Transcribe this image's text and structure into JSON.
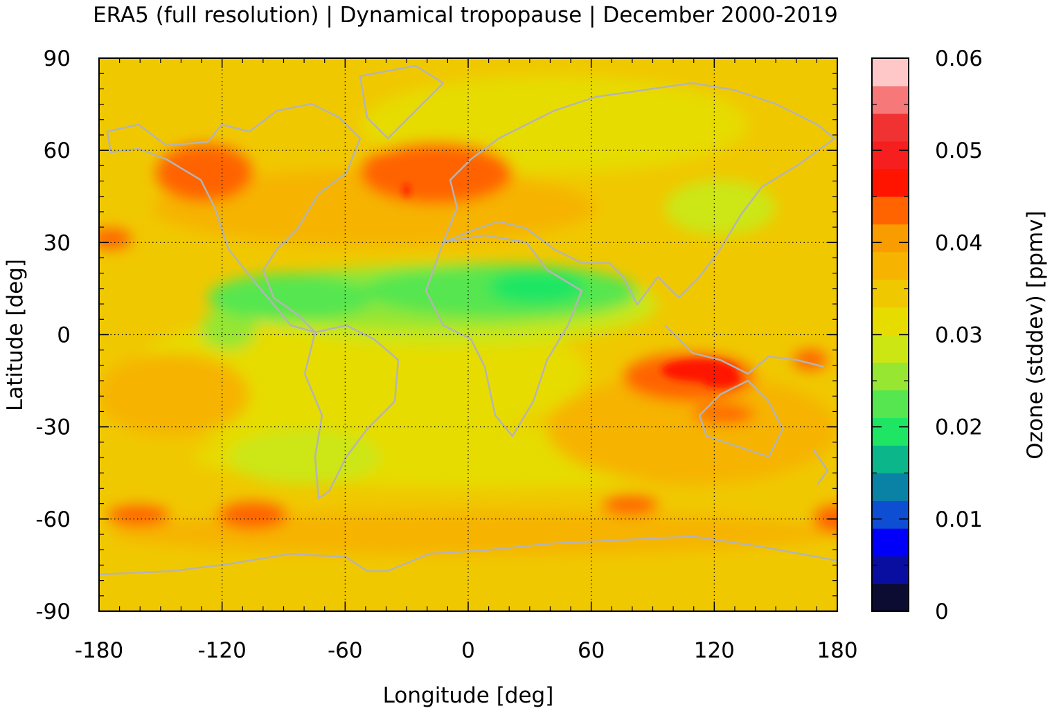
{
  "title": "ERA5 (full resolution) | Dynamical tropopause | December 2000-2019",
  "chart_data": {
    "type": "heatmap",
    "title": "ERA5 (full resolution) | Dynamical tropopause | December 2000-2019",
    "xlabel": "Longitude [deg]",
    "ylabel": "Latitude [deg]",
    "colorbar_label": "Ozone (stddev) [ppmv]",
    "xlim": [
      -180,
      180
    ],
    "ylim": [
      -90,
      90
    ],
    "xticks": [
      "-180",
      "-120",
      "-60",
      "0",
      "60",
      "120",
      "180"
    ],
    "yticks": [
      "-90",
      "-60",
      "-30",
      "0",
      "30",
      "60",
      "90"
    ],
    "colorbar_range": [
      0,
      0.06
    ],
    "colorbar_ticks": [
      "0",
      "0.01",
      "0.02",
      "0.03",
      "0.04",
      "0.05",
      "0.06"
    ],
    "grid": true,
    "coastlines_color": "#b4b4b4",
    "colorbar_colors": [
      "#0c0c32",
      "#0a0ea0",
      "#0000fa",
      "#0e4ed2",
      "#0a82a6",
      "#0ab68a",
      "#1ee664",
      "#56e650",
      "#96e632",
      "#cce614",
      "#e6dc00",
      "#f0c800",
      "#f6b400",
      "#f89c00",
      "#ff6400",
      "#ff1400",
      "#f61e1e",
      "#f03232",
      "#f67878",
      "#ffc8c8"
    ]
  }
}
